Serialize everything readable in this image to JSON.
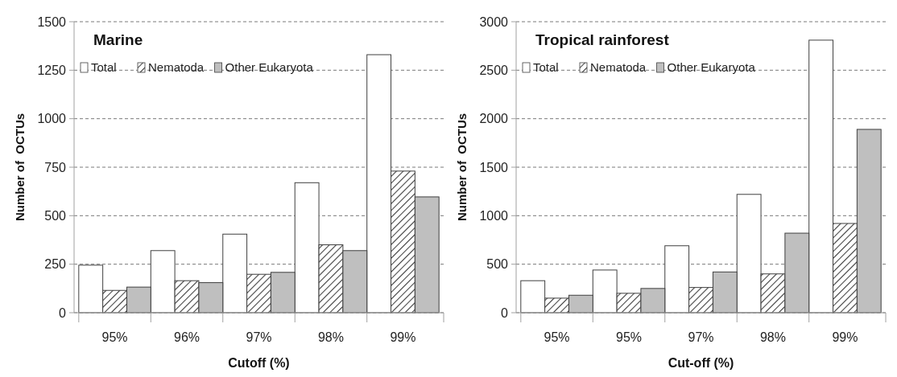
{
  "chart_data": [
    {
      "type": "bar",
      "title": "Marine",
      "xlabel": "Cutoff (%)",
      "ylabel": "Number of  OCTUs",
      "categories": [
        "95%",
        "96%",
        "97%",
        "98%",
        "99%"
      ],
      "series": [
        {
          "name": "Total",
          "color": "#ffffff",
          "values": [
            245,
            320,
            405,
            670,
            1330
          ]
        },
        {
          "name": "Nematoda",
          "color": "#404040",
          "values": [
            115,
            165,
            198,
            350,
            730
          ]
        },
        {
          "name": "Other Eukaryota",
          "color": "#bfbfbf",
          "values": [
            132,
            155,
            208,
            320,
            597
          ]
        }
      ],
      "ylim": [
        0,
        1500
      ],
      "yticks": [
        0,
        250,
        500,
        750,
        1000,
        1250,
        1500
      ],
      "grid": "y",
      "legend": "top left"
    },
    {
      "type": "bar",
      "title": "Tropical rainforest",
      "xlabel": "Cut-off (%)",
      "ylabel": "Number of  OCTUs",
      "categories": [
        "95%",
        "95%",
        "97%",
        "98%",
        "99%"
      ],
      "series": [
        {
          "name": "Total",
          "color": "#ffffff",
          "values": [
            330,
            440,
            690,
            1220,
            2810
          ]
        },
        {
          "name": "Nematoda",
          "color": "#404040",
          "values": [
            150,
            200,
            260,
            400,
            920
          ]
        },
        {
          "name": "Other Eukaryota",
          "color": "#bfbfbf",
          "values": [
            180,
            250,
            420,
            820,
            1890
          ]
        }
      ],
      "ylim": [
        0,
        3000
      ],
      "yticks": [
        0,
        500,
        1000,
        1500,
        2000,
        2500,
        3000
      ],
      "grid": "y",
      "legend": "top left"
    }
  ]
}
